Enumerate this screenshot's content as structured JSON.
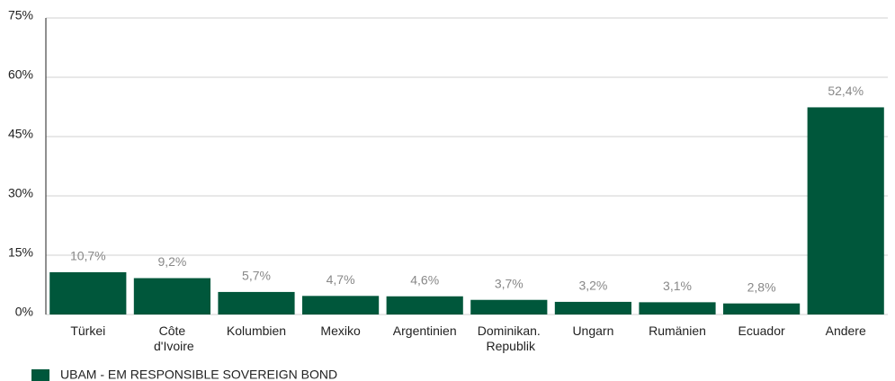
{
  "chart_data": {
    "type": "bar",
    "categories": [
      "Türkei",
      "Côte d'Ivoire",
      "Kolumbien",
      "Mexiko",
      "Argentinien",
      "Dominikan. Republik",
      "Ungarn",
      "Rumänien",
      "Ecuador",
      "Andere"
    ],
    "series": [
      {
        "name": "UBAM - EM RESPONSIBLE SOVEREIGN BOND",
        "color": "#00573b",
        "values": [
          10.7,
          9.2,
          5.7,
          4.7,
          4.6,
          3.7,
          3.2,
          3.1,
          2.8,
          52.4
        ],
        "value_labels": [
          "10,7%",
          "9,2%",
          "5,7%",
          "4,7%",
          "4,6%",
          "3,7%",
          "3,2%",
          "3,1%",
          "2,8%",
          "52,4%"
        ]
      }
    ],
    "ylim": [
      0,
      75
    ],
    "yticks": [
      {
        "value": 0,
        "label": "0%"
      },
      {
        "value": 15,
        "label": "15%"
      },
      {
        "value": 30,
        "label": "30%"
      },
      {
        "value": 45,
        "label": "45%"
      },
      {
        "value": 60,
        "label": "60%"
      },
      {
        "value": 75,
        "label": "75%"
      }
    ],
    "grid": true,
    "legend": "bottom-left"
  }
}
